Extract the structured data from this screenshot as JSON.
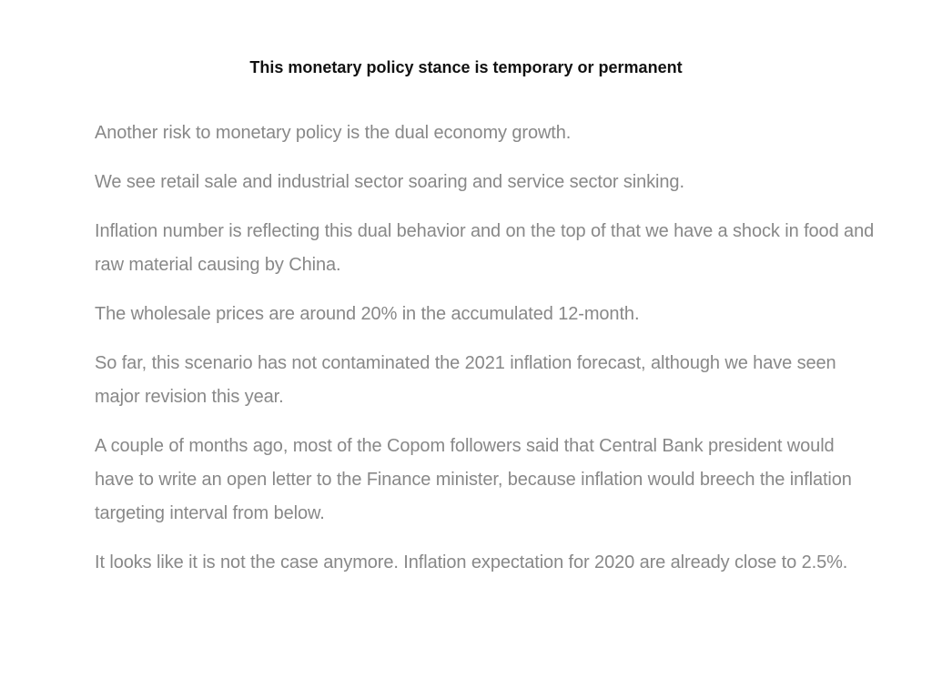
{
  "slide": {
    "title": "This monetary policy stance is temporary or permanent",
    "paragraphs": [
      "Another risk to monetary policy is the dual economy growth.",
      "We see retail sale and industrial sector soaring and service sector sinking.",
      "Inflation number is reflecting this dual behavior and on the top of that we have a shock in food and raw material causing by China.",
      "The wholesale prices are around 20% in the accumulated 12-month.",
      "So far, this scenario has not contaminated the 2021 inflation forecast, although we have seen major revision this year.",
      "A couple of months ago, most of the Copom followers said that Central Bank president would have to write an open letter to the Finance minister, because inflation would breech the inflation targeting interval from below.",
      "It looks like it is not the case anymore. Inflation expectation for 2020 are already close to 2.5%."
    ]
  },
  "colors": {
    "title": "#111111",
    "body_text": "#888888",
    "background": "#ffffff"
  }
}
